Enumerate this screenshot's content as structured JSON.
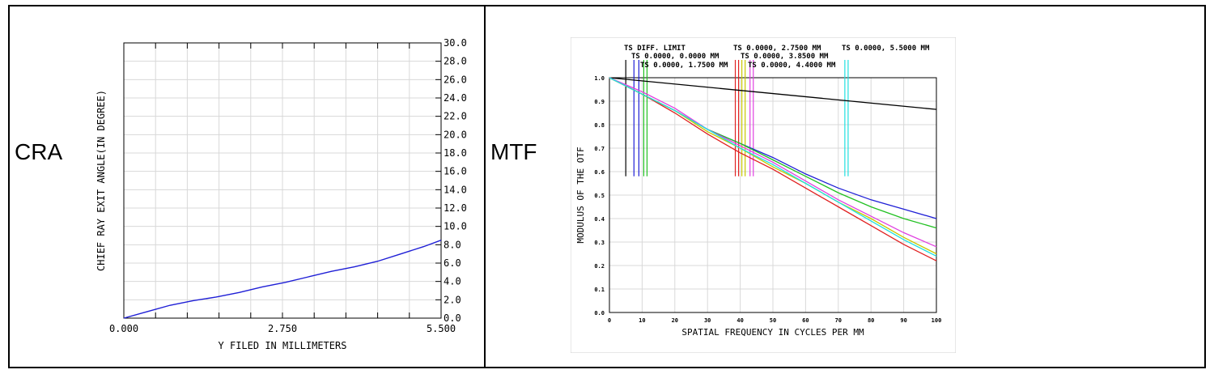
{
  "panels": {
    "left_label": "CRA",
    "right_label": "MTF"
  },
  "chart_data": [
    {
      "type": "line",
      "xlabel": "Y FILED IN MILLIMETERS",
      "ylabel": "CHIEF RAY EXIT ANGLE(IN DEGREE)",
      "xlim": [
        0,
        5.5
      ],
      "ylim": [
        0,
        30
      ],
      "x_tick_labels": [
        "0.000",
        "2.750",
        "5.500"
      ],
      "y_tick_labels": [
        "0.0",
        "2.0",
        "4.0",
        "6.0",
        "8.0",
        "10.0",
        "12.0",
        "14.0",
        "16.0",
        "18.0",
        "20.0",
        "22.0",
        "24.0",
        "26.0",
        "28.0",
        "30.0"
      ],
      "grid": true,
      "color": "#1f1fd6",
      "series": [
        {
          "x": [
            0,
            0.4,
            0.8,
            1.2,
            1.6,
            2.0,
            2.4,
            2.8,
            3.2,
            3.6,
            4.0,
            4.4,
            4.8,
            5.2,
            5.5
          ],
          "y": [
            0.0,
            0.7,
            1.4,
            1.9,
            2.3,
            2.8,
            3.4,
            3.9,
            4.5,
            5.1,
            5.6,
            6.2,
            7.0,
            7.8,
            8.5
          ]
        }
      ]
    },
    {
      "type": "line",
      "xlabel": "SPATIAL FREQUENCY IN CYCLES PER MM",
      "ylabel": "MODULUS OF THE OTF",
      "xlim": [
        0,
        100
      ],
      "ylim": [
        0,
        1
      ],
      "x_tick_labels": [
        "0",
        "10",
        "20",
        "30",
        "40",
        "50",
        "60",
        "70",
        "80",
        "90",
        "100"
      ],
      "y_tick_labels": [
        "0.0",
        "0.1",
        "0.2",
        "0.3",
        "0.4",
        "0.5",
        "0.6",
        "0.7",
        "0.8",
        "0.9",
        "1.0"
      ],
      "grid": true,
      "legend": [
        {
          "text": "TS DIFF. LIMIT",
          "color": "#000000"
        },
        {
          "text": "TS 0.0000, 0.0000 MM",
          "color": "#1f1fd6"
        },
        {
          "text": "TS 0.0000, 1.7500 MM",
          "color": "#20c020"
        },
        {
          "text": "TS 0.0000, 2.7500 MM",
          "color": "#e02020"
        },
        {
          "text": "TS 0.0000, 3.8500 MM",
          "color": "#c8c800"
        },
        {
          "text": "TS 0.0000, 4.4000 MM",
          "color": "#e040e0"
        },
        {
          "text": "TS 0.0000, 5.5000 MM",
          "color": "#20e0e0"
        }
      ],
      "series": [
        {
          "color": "#000000",
          "x": [
            0,
            100
          ],
          "y": [
            1.0,
            0.865
          ]
        },
        {
          "color": "#1f1fd6",
          "x": [
            0,
            10,
            20,
            30,
            40,
            50,
            60,
            70,
            80,
            90,
            100
          ],
          "y": [
            1.0,
            0.93,
            0.86,
            0.78,
            0.72,
            0.66,
            0.59,
            0.53,
            0.48,
            0.44,
            0.4
          ]
        },
        {
          "color": "#20c020",
          "x": [
            0,
            10,
            20,
            30,
            40,
            50,
            60,
            70,
            80,
            90,
            100
          ],
          "y": [
            1.0,
            0.93,
            0.86,
            0.78,
            0.72,
            0.65,
            0.58,
            0.51,
            0.45,
            0.4,
            0.36
          ]
        },
        {
          "color": "#e02020",
          "x": [
            0,
            10,
            20,
            30,
            40,
            50,
            60,
            70,
            80,
            90,
            100
          ],
          "y": [
            1.0,
            0.93,
            0.85,
            0.76,
            0.68,
            0.61,
            0.53,
            0.45,
            0.37,
            0.29,
            0.22
          ]
        },
        {
          "color": "#c8c800",
          "x": [
            0,
            10,
            20,
            30,
            40,
            50,
            60,
            70,
            80,
            90,
            100
          ],
          "y": [
            1.0,
            0.93,
            0.86,
            0.77,
            0.7,
            0.62,
            0.55,
            0.47,
            0.4,
            0.32,
            0.25
          ]
        },
        {
          "color": "#e040e0",
          "x": [
            0,
            10,
            20,
            30,
            40,
            50,
            60,
            70,
            80,
            90,
            100
          ],
          "y": [
            1.0,
            0.94,
            0.87,
            0.78,
            0.71,
            0.64,
            0.56,
            0.48,
            0.41,
            0.34,
            0.28
          ]
        },
        {
          "color": "#20e0e0",
          "x": [
            0,
            10,
            20,
            30,
            40,
            50,
            60,
            70,
            80,
            90,
            100
          ],
          "y": [
            1.0,
            0.93,
            0.86,
            0.78,
            0.7,
            0.63,
            0.55,
            0.47,
            0.39,
            0.31,
            0.24
          ]
        }
      ],
      "marker_freqs": [
        {
          "color": "#000000",
          "x": [
            5
          ]
        },
        {
          "color": "#1f1fd6",
          "x": [
            7.5,
            9.0
          ]
        },
        {
          "color": "#20c020",
          "x": [
            10.5,
            11.5
          ]
        },
        {
          "color": "#e02020",
          "x": [
            38.5,
            39.5
          ]
        },
        {
          "color": "#c8c800",
          "x": [
            40.5,
            41.5
          ]
        },
        {
          "color": "#e040e0",
          "x": [
            43.0,
            44.0
          ]
        },
        {
          "color": "#20e0e0",
          "x": [
            72.0,
            73.0
          ]
        }
      ]
    }
  ]
}
